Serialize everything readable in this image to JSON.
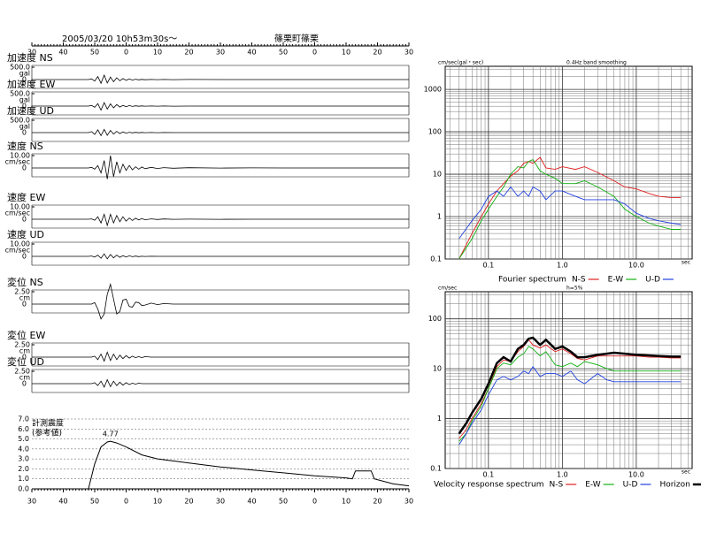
{
  "header": {
    "datetime": "2005/03/20  10h53m30s～",
    "station": "篠栗町篠栗"
  },
  "chart_data": [
    {
      "type": "waveforms",
      "xlim": [
        0,
        120
      ],
      "xticks": [
        {
          "value": 0,
          "label": "30"
        },
        {
          "value": 10,
          "label": "40"
        },
        {
          "value": 20,
          "label": "50"
        },
        {
          "value": 30,
          "label": "0"
        },
        {
          "value": 40,
          "label": "10"
        },
        {
          "value": 50,
          "label": "20"
        },
        {
          "value": 60,
          "label": "30"
        },
        {
          "value": 70,
          "label": "40"
        },
        {
          "value": 80,
          "label": "50"
        },
        {
          "value": 90,
          "label": "0"
        },
        {
          "value": 100,
          "label": "10"
        },
        {
          "value": 110,
          "label": "20"
        },
        {
          "value": 120,
          "label": "30"
        }
      ],
      "x": [
        0,
        18,
        19,
        20,
        21,
        22,
        23,
        24,
        25,
        26,
        27,
        28,
        29,
        30,
        31,
        32,
        33,
        34,
        35,
        36,
        38,
        40,
        42,
        45,
        50,
        60,
        70,
        80,
        90,
        100,
        110,
        120
      ],
      "series": [
        {
          "name": "加速度 NS",
          "unit": "gal",
          "scale": {
            "value": 500,
            "label": "500.0"
          },
          "zero": 0,
          "color": "#000000",
          "values": [
            0,
            0,
            30,
            -60,
            120,
            -150,
            180,
            -140,
            100,
            -90,
            70,
            -50,
            40,
            -30,
            25,
            -20,
            15,
            -10,
            8,
            -6,
            5,
            -4,
            3,
            -2,
            2,
            -1,
            1,
            0,
            0,
            0,
            0,
            0
          ]
        },
        {
          "name": "加速度 EW",
          "unit": "gal",
          "scale": {
            "value": 500,
            "label": "500.0"
          },
          "zero": 0,
          "color": "#000000",
          "values": [
            0,
            0,
            25,
            -50,
            100,
            -160,
            140,
            -120,
            90,
            -70,
            60,
            -40,
            30,
            -25,
            20,
            -15,
            10,
            -8,
            6,
            -5,
            4,
            -3,
            2,
            -2,
            1,
            -1,
            1,
            0,
            0,
            0,
            0,
            0
          ]
        },
        {
          "name": "加速度 UD",
          "unit": "gal",
          "scale": {
            "value": 500,
            "label": "500.0"
          },
          "zero": 0,
          "color": "#000000",
          "values": [
            0,
            0,
            40,
            -70,
            110,
            -120,
            130,
            -110,
            90,
            -60,
            50,
            -40,
            30,
            -20,
            15,
            -12,
            10,
            -8,
            6,
            -4,
            3,
            -2,
            2,
            -1,
            1,
            -1,
            0,
            0,
            0,
            0,
            0,
            0
          ]
        },
        {
          "name": "速度 NS",
          "unit": "cm/sec",
          "scale": {
            "value": 10,
            "label": "10.00"
          },
          "zero": 0,
          "color": "#000000",
          "values": [
            0,
            0,
            0.5,
            -1,
            2,
            -4,
            6,
            -9,
            10,
            -7,
            5,
            -4,
            3,
            -2,
            2,
            -1.5,
            1,
            -1,
            0.8,
            -0.6,
            0.5,
            -0.4,
            0.3,
            -0.2,
            0.2,
            -0.1,
            0.1,
            0,
            0,
            0,
            0,
            0
          ]
        },
        {
          "name": "速度 EW",
          "unit": "cm/sec",
          "scale": {
            "value": 10,
            "label": "10.00"
          },
          "zero": 0,
          "color": "#000000",
          "values": [
            0,
            0,
            0.3,
            -0.8,
            2,
            -3,
            4,
            -5,
            4,
            -3,
            3,
            -2,
            2,
            -1.5,
            1,
            -1,
            0.8,
            -0.6,
            0.5,
            -0.4,
            0.3,
            -0.2,
            0.2,
            -0.1,
            0.1,
            -0.1,
            0,
            0,
            0,
            0,
            0,
            0
          ]
        },
        {
          "name": "速度 UD",
          "unit": "cm/sec",
          "scale": {
            "value": 10,
            "label": "10.00"
          },
          "zero": 0,
          "color": "#000000",
          "values": [
            0,
            0,
            0.3,
            -0.6,
            1,
            -1.5,
            2,
            -2,
            1.5,
            -1.2,
            1,
            -0.8,
            0.6,
            -0.5,
            0.4,
            -0.3,
            0.2,
            -0.2,
            0.1,
            -0.1,
            0.1,
            0,
            0,
            0,
            0,
            0,
            0,
            0,
            0,
            0,
            0,
            0
          ]
        },
        {
          "name": "変位 NS",
          "unit": "cm",
          "scale": {
            "value": 2.5,
            "label": "2.50"
          },
          "zero": 0,
          "color": "#000000",
          "values": [
            0,
            0,
            0,
            0.3,
            -1,
            -3,
            -2,
            2,
            4,
            1,
            -2,
            -1.5,
            0.8,
            1,
            -0.5,
            -0.6,
            0.4,
            0.3,
            -0.3,
            -0.2,
            0.2,
            -0.1,
            0.1,
            0,
            0,
            0,
            0,
            0,
            0,
            0,
            0,
            0
          ]
        },
        {
          "name": "変位 EW",
          "unit": "cm",
          "scale": {
            "value": 2.5,
            "label": "2.50"
          },
          "zero": 0,
          "color": "#000000",
          "values": [
            0,
            0,
            0,
            0.2,
            -0.5,
            0.6,
            -0.8,
            1,
            -0.7,
            0.6,
            -0.5,
            0.4,
            -0.3,
            0.3,
            -0.2,
            0.2,
            -0.1,
            0.1,
            -0.1,
            0.1,
            0,
            0,
            0,
            0,
            0,
            0,
            0,
            0,
            0,
            0,
            0,
            0
          ]
        },
        {
          "name": "変位 UD",
          "unit": "cm",
          "scale": {
            "value": 2.5,
            "label": "2.50"
          },
          "zero": 0,
          "color": "#000000",
          "values": [
            0,
            0,
            0,
            0.2,
            -0.4,
            0.5,
            -0.7,
            0.8,
            -0.6,
            0.5,
            -0.4,
            0.3,
            -0.3,
            0.2,
            -0.2,
            0.1,
            -0.1,
            0.1,
            0,
            0,
            0,
            0,
            0,
            0,
            0,
            0,
            0,
            0,
            0,
            0,
            0,
            0
          ]
        }
      ]
    },
    {
      "type": "intensity",
      "ylabel": [
        "計測震度",
        "(参考値)"
      ],
      "peak_label": 4.77,
      "color": "#000000",
      "xlim": [
        0,
        120
      ],
      "xticks": [
        {
          "value": 0,
          "label": "30"
        },
        {
          "value": 10,
          "label": "40"
        },
        {
          "value": 20,
          "label": "50"
        },
        {
          "value": 30,
          "label": "0"
        },
        {
          "value": 40,
          "label": "10"
        },
        {
          "value": 50,
          "label": "20"
        },
        {
          "value": 60,
          "label": "30"
        },
        {
          "value": 70,
          "label": "40"
        },
        {
          "value": 80,
          "label": "50"
        },
        {
          "value": 90,
          "label": "0"
        },
        {
          "value": 100,
          "label": "10"
        },
        {
          "value": 110,
          "label": "20"
        },
        {
          "value": 120,
          "label": "30"
        }
      ],
      "ylim": [
        0,
        7
      ],
      "yticks": [
        {
          "value": 0,
          "label": "0.0"
        },
        {
          "value": 1,
          "label": "1.0"
        },
        {
          "value": 2,
          "label": "2.0"
        },
        {
          "value": 3,
          "label": "3.0"
        },
        {
          "value": 4,
          "label": "4.0"
        },
        {
          "value": 5,
          "label": "5.0"
        },
        {
          "value": 6,
          "label": "6.0"
        },
        {
          "value": 7,
          "label": "7.0"
        }
      ],
      "grid": true,
      "x": [
        6,
        18,
        20,
        22,
        24,
        25,
        27,
        30,
        35,
        40,
        50,
        60,
        70,
        80,
        90,
        100,
        102,
        103,
        108,
        109,
        115,
        120
      ],
      "values": [
        0,
        0,
        2.5,
        4.2,
        4.7,
        4.77,
        4.6,
        4.2,
        3.4,
        3,
        2.6,
        2.2,
        1.9,
        1.6,
        1.3,
        1.1,
        1.0,
        1.8,
        1.8,
        1.0,
        0.5,
        0.3
      ]
    },
    {
      "type": "loglog",
      "title": "Fourier spectrum",
      "ylabel": "cm/sec(gal・sec)",
      "note": "0.4Hz band smoothing",
      "xlabel": "sec",
      "log_scale": true,
      "grid": true,
      "xlim": [
        0.026,
        57
      ],
      "ylim": [
        0.1,
        3500
      ],
      "xticks": [
        0.1,
        {
          "value": 1,
          "label": "1.0"
        },
        {
          "value": 10,
          "label": "10.0"
        }
      ],
      "yticks": [
        0.1,
        1,
        10,
        100,
        1000
      ],
      "x": [
        0.04,
        0.06,
        0.08,
        0.1,
        0.13,
        0.16,
        0.2,
        0.25,
        0.3,
        0.35,
        0.4,
        0.5,
        0.6,
        0.8,
        1,
        1.5,
        2,
        3,
        5,
        7,
        10,
        15,
        20,
        30,
        40
      ],
      "series": [
        {
          "name": "N-S",
          "color": "#e02020",
          "values": [
            0.1,
            0.4,
            1,
            2,
            4,
            6,
            9,
            12,
            18,
            20,
            18,
            25,
            14,
            13,
            15,
            13,
            15,
            11,
            7,
            5,
            4.5,
            3.5,
            3,
            2.8,
            2.8
          ]
        },
        {
          "name": "E-W",
          "color": "#10b010",
          "values": [
            0.1,
            0.3,
            0.8,
            1.5,
            3,
            5,
            10,
            15,
            14,
            20,
            22,
            12,
            10,
            8,
            6,
            6,
            7,
            5,
            3,
            1.5,
            1,
            0.7,
            0.6,
            0.5,
            0.5
          ]
        },
        {
          "name": "U-D",
          "color": "#2040e0",
          "values": [
            0.3,
            0.8,
            1.5,
            3,
            4,
            3,
            5,
            3,
            4,
            3,
            5,
            4,
            2.5,
            4,
            4,
            3,
            2.5,
            2.5,
            2.5,
            2,
            1.2,
            0.9,
            0.8,
            0.7,
            0.65
          ]
        }
      ]
    },
    {
      "type": "loglog",
      "title": "Velocity response spectrum",
      "ylabel": "cm/sec",
      "note": "h=5%",
      "xlabel": "sec",
      "log_scale": true,
      "grid": true,
      "xlim": [
        0.026,
        57
      ],
      "ylim": [
        0.1,
        350
      ],
      "xticks": [
        0.1,
        {
          "value": 1,
          "label": "1.0"
        },
        {
          "value": 10,
          "label": "10.0"
        }
      ],
      "yticks": [
        0.1,
        1,
        10,
        100
      ],
      "x": [
        0.04,
        0.05,
        0.06,
        0.08,
        0.1,
        0.13,
        0.16,
        0.2,
        0.25,
        0.3,
        0.35,
        0.4,
        0.5,
        0.6,
        0.8,
        1,
        1.3,
        1.6,
        2,
        3,
        4,
        5,
        7,
        10,
        15,
        20,
        30,
        40
      ],
      "series": [
        {
          "name": "N-S",
          "color": "#e02020",
          "values": [
            0.4,
            0.6,
            1,
            2,
            4,
            11,
            15,
            14,
            22,
            28,
            38,
            30,
            26,
            30,
            22,
            25,
            20,
            16,
            15,
            18,
            18,
            18,
            18,
            18,
            17,
            17,
            16.5,
            16.5
          ]
        },
        {
          "name": "E-W",
          "color": "#10b010",
          "values": [
            0.35,
            0.5,
            0.9,
            1.8,
            4,
            10,
            13,
            12,
            17,
            20,
            28,
            25,
            18,
            22,
            12,
            11,
            13,
            11,
            14,
            12,
            10,
            9,
            9,
            9,
            9,
            9,
            9,
            9
          ]
        },
        {
          "name": "U-D",
          "color": "#2040e0",
          "values": [
            0.3,
            0.5,
            0.8,
            1.5,
            3,
            6,
            7,
            6,
            7,
            9,
            8,
            11,
            7,
            8,
            8,
            7,
            9,
            6,
            5,
            8,
            6,
            5.5,
            5.5,
            5.5,
            5.5,
            5.5,
            5.5,
            5.5
          ]
        },
        {
          "name": "Horizon",
          "color": "#000000",
          "width": 2.5,
          "values": [
            0.5,
            0.8,
            1.3,
            2.5,
            5,
            13,
            17,
            14,
            25,
            30,
            40,
            42,
            30,
            38,
            25,
            28,
            22,
            17,
            17,
            19,
            20,
            21,
            20,
            19,
            18.5,
            18,
            17.5,
            17.5
          ]
        }
      ]
    }
  ]
}
